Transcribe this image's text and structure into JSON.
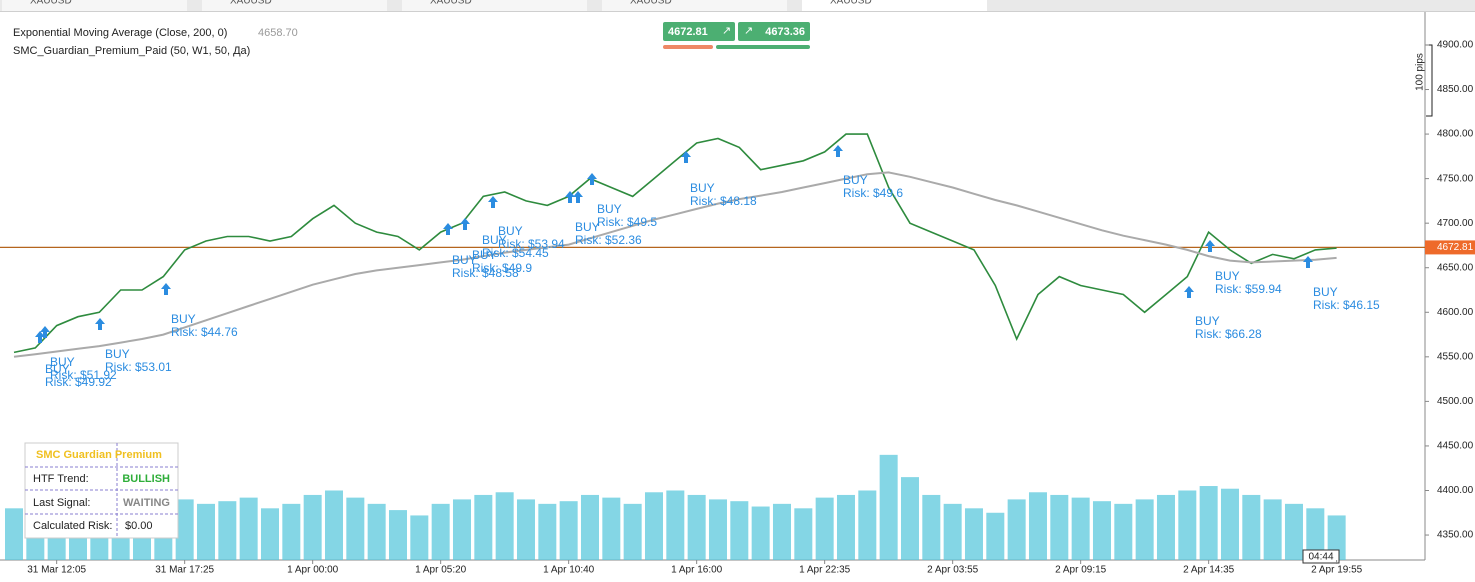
{
  "tabs": [
    "XAUUSD",
    "XAUUSD",
    "XAUUSD",
    "XAUUSD",
    "XAUUSD"
  ],
  "chart_data": {
    "type": "line",
    "indicators": [
      "SMC_Guardian_Premium_Paid (50, W1, 50, Да)"
    ],
    "categories": [
      null,
      null,
      "31 Mar 12:05",
      null,
      null,
      null,
      null,
      null,
      "31 Mar 17:25",
      null,
      null,
      null,
      null,
      null,
      "1 Apr 00:00",
      null,
      null,
      null,
      null,
      null,
      "1 Apr 05:20",
      null,
      null,
      null,
      null,
      null,
      "1 Apr 10:40",
      null,
      null,
      null,
      null,
      null,
      "1 Apr 16:00",
      null,
      null,
      null,
      null,
      null,
      "1 Apr 22:35",
      null,
      null,
      null,
      null,
      null,
      "2 Apr 03:55",
      null,
      null,
      null,
      null,
      null,
      "2 Apr 09:15",
      null,
      null,
      null,
      null,
      null,
      "2 Apr 14:35",
      null,
      null,
      null,
      null,
      null,
      "2 Apr 19:55"
    ],
    "series": [
      {
        "color": "#2e8b3e",
        "values": [
          4555,
          4560,
          4585,
          4595,
          4600,
          4625,
          4625,
          4640,
          4670,
          4680,
          4685,
          4685,
          4680,
          4685,
          4705,
          4720,
          4700,
          4690,
          4685,
          4670,
          4690,
          4700,
          4730,
          4735,
          4725,
          4720,
          4730,
          4750,
          4740,
          4730,
          4750,
          4770,
          4790,
          4795,
          4785,
          4760,
          4765,
          4770,
          4780,
          4800,
          4800,
          4740,
          4700,
          4690,
          4680,
          4670,
          4630,
          4570,
          4620,
          4640,
          4630,
          4625,
          4620,
          4600,
          4620,
          4640,
          4690,
          4670,
          4655,
          4665,
          4660,
          4670,
          4672
        ]
      },
      {
        "name": "Exponential Moving Average (Close, 200, 0)",
        "color": "#aaaaaa",
        "current_value": {
          "value": 4658.7,
          "label": "4658.70"
        },
        "values": [
          4550,
          4553,
          4556,
          4559,
          4562,
          4566,
          4570,
          4575,
          4583,
          4591,
          4599,
          4607,
          4615,
          4623,
          4631,
          4637,
          4643,
          4647,
          4650,
          4653,
          4656,
          4659,
          4663,
          4667,
          4670,
          4673,
          4676,
          4683,
          4690,
          4697,
          4704,
          4710,
          4716,
          4722,
          4727,
          4731,
          4735,
          4740,
          4745,
          4750,
          4755,
          4757,
          4752,
          4746,
          4740,
          4733,
          4726,
          4720,
          4713,
          4706,
          4699,
          4692,
          4686,
          4681,
          4676,
          4670,
          4663,
          4658,
          4656,
          4657,
          4658,
          4659,
          4661
        ]
      }
    ],
    "volume": {
      "color": "#5bc8dc",
      "values": [
        4380,
        4375,
        4385,
        4378,
        4382,
        4390,
        4380,
        4395,
        4390,
        4385,
        4388,
        4392,
        4380,
        4385,
        4395,
        4400,
        4392,
        4385,
        4378,
        4372,
        4385,
        4390,
        4395,
        4398,
        4390,
        4385,
        4388,
        4395,
        4392,
        4385,
        4398,
        4400,
        4395,
        4390,
        4388,
        4382,
        4385,
        4380,
        4392,
        4395,
        4400,
        4440,
        4415,
        4395,
        4385,
        4380,
        4375,
        4390,
        4398,
        4395,
        4392,
        4388,
        4385,
        4390,
        4395,
        4400,
        4405,
        4402,
        4395,
        4390,
        4385,
        4380,
        4372
      ]
    },
    "current_price": 4672.81,
    "quotes": [
      4672.81,
      4673.36
    ],
    "ylim": [
      4327.6,
      4937
    ],
    "yticks": [
      {
        "value": 4350,
        "label": "4350.00"
      },
      {
        "value": 4400,
        "label": "4400.00"
      },
      {
        "value": 4450,
        "label": "4450.00"
      },
      {
        "value": 4500,
        "label": "4500.00"
      },
      {
        "value": 4550,
        "label": "4550.00"
      },
      {
        "value": 4600,
        "label": "4600.00"
      },
      {
        "value": 4650,
        "label": "4650.00"
      },
      {
        "value": 4700,
        "label": "4700.00"
      },
      {
        "value": 4750,
        "label": "4750.00"
      },
      {
        "value": 4800,
        "label": "4800.00"
      },
      {
        "value": 4850,
        "label": "4850.00"
      },
      {
        "value": 4900,
        "label": "4900.00"
      }
    ],
    "scale_label": "100 pips",
    "time_label": "04:44",
    "signals": [
      {
        "label": "BUY",
        "risk": "Risk: $49.92"
      },
      {
        "label": "BUY",
        "risk": "Risk: $51.92"
      },
      {
        "label": "BUY",
        "risk": "Risk: $53.01"
      },
      {
        "label": "BUY",
        "risk": "Risk: $44.76"
      },
      {
        "label": "BUY",
        "risk": "Risk: $48.58"
      },
      {
        "label": "BUY",
        "risk": "Risk: $49.9"
      },
      {
        "label": "BUY",
        "risk": "Risk: $53.94"
      },
      {
        "label": "BUY",
        "risk": "Risk: $54.45"
      },
      {
        "label": "BUY",
        "risk": "Risk: $52.36"
      },
      {
        "label": "BUY",
        "risk": "Risk: $49.5"
      },
      {
        "label": "BUY",
        "risk": "Risk: $48.18"
      },
      {
        "label": "BUY",
        "risk": "Risk: $49.6"
      },
      {
        "label": "BUY",
        "risk": "Risk: $66.28"
      },
      {
        "label": "BUY",
        "risk": "Risk: $59.94"
      },
      {
        "label": "BUY",
        "risk": "Risk: $46.15"
      }
    ]
  },
  "panel": {
    "title": "SMC Guardian Premium",
    "rows": [
      [
        "HTF Trend:",
        "BULLISH"
      ],
      [
        "Last Signal:",
        "WAITING"
      ],
      [
        "Calculated Risk:",
        "$0.00"
      ]
    ]
  }
}
